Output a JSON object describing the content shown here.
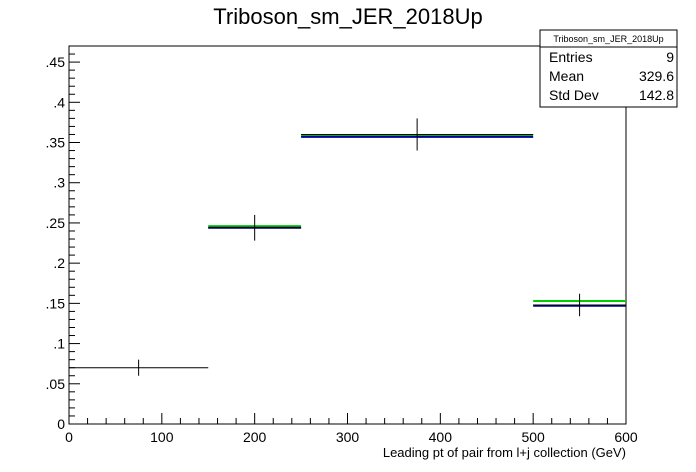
{
  "chart_data": {
    "type": "histogram",
    "title": "Triboson_sm_JER_2018Up",
    "xlabel": "Leading pt of pair from l+j collection (GeV)",
    "ylabel": "",
    "xlim": [
      0,
      600
    ],
    "ylim": [
      0,
      0.47
    ],
    "x_ticks": [
      0,
      100,
      200,
      300,
      400,
      500,
      600
    ],
    "y_ticks": [
      0,
      0.05,
      0.1,
      0.15,
      0.2,
      0.25,
      0.3,
      0.35,
      0.4,
      0.45
    ],
    "grid": false,
    "series": [
      {
        "color": "#000000",
        "style": "points-with-errors",
        "bins": [
          {
            "x_low": 0,
            "x_high": 150,
            "x_center": 75,
            "value": 0.07,
            "err_low": 0.01,
            "err_high": 0.01
          },
          {
            "x_low": 150,
            "x_high": 250,
            "x_center": 200,
            "value": 0.244,
            "err_low": 0.016,
            "err_high": 0.016
          },
          {
            "x_low": 250,
            "x_high": 500,
            "x_center": 375,
            "value": 0.36,
            "err_low": 0.02,
            "err_high": 0.02
          },
          {
            "x_low": 500,
            "x_high": 600,
            "x_center": 550,
            "value": 0.148,
            "err_low": 0.014,
            "err_high": 0.014
          }
        ]
      },
      {
        "color": "#00cc00",
        "style": "step",
        "bins": [
          {
            "x_low": 150,
            "x_high": 250,
            "value": 0.246
          },
          {
            "x_low": 250,
            "x_high": 500,
            "value": 0.359
          },
          {
            "x_low": 500,
            "x_high": 600,
            "value": 0.153
          }
        ]
      },
      {
        "color": "#000099",
        "style": "step",
        "bins": [
          {
            "x_low": 150,
            "x_high": 250,
            "value": 0.244
          },
          {
            "x_low": 250,
            "x_high": 500,
            "value": 0.357
          },
          {
            "x_low": 500,
            "x_high": 600,
            "value": 0.147
          }
        ]
      }
    ],
    "stats_box": {
      "title": "Triboson_sm_JER_2018Up",
      "position": "top-right",
      "rows": [
        {
          "label": "Entries",
          "value": "9"
        },
        {
          "label": "Mean",
          "value": "329.6"
        },
        {
          "label": "Std Dev",
          "value": "142.8"
        }
      ]
    }
  }
}
